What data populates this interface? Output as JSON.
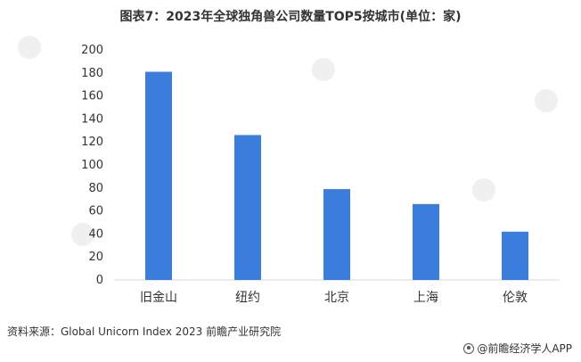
{
  "title": "图表7：2023年全球独角兽公司数量TOP5按城市(单位：家)",
  "source": "资料来源：Global Unicorn Index 2023 前瞻产业研究院",
  "brand": "@前瞻经济学人APP",
  "watermark": "前瞻产业研究院",
  "colors": {
    "bar": "#3b7ddd",
    "axis": "#d9d9d9",
    "text": "#333333"
  },
  "chart_data": {
    "type": "bar",
    "categories": [
      "旧金山",
      "纽约",
      "北京",
      "上海",
      "伦敦"
    ],
    "values": [
      181,
      126,
      79,
      66,
      42
    ],
    "ylim": [
      0,
      200
    ],
    "yticks": [
      0,
      20,
      40,
      60,
      80,
      100,
      120,
      140,
      160,
      180,
      200
    ],
    "title": "图表7：2023年全球独角兽公司数量TOP5按城市(单位：家)",
    "xlabel": "",
    "ylabel": "",
    "grid": false,
    "legend": "none"
  }
}
